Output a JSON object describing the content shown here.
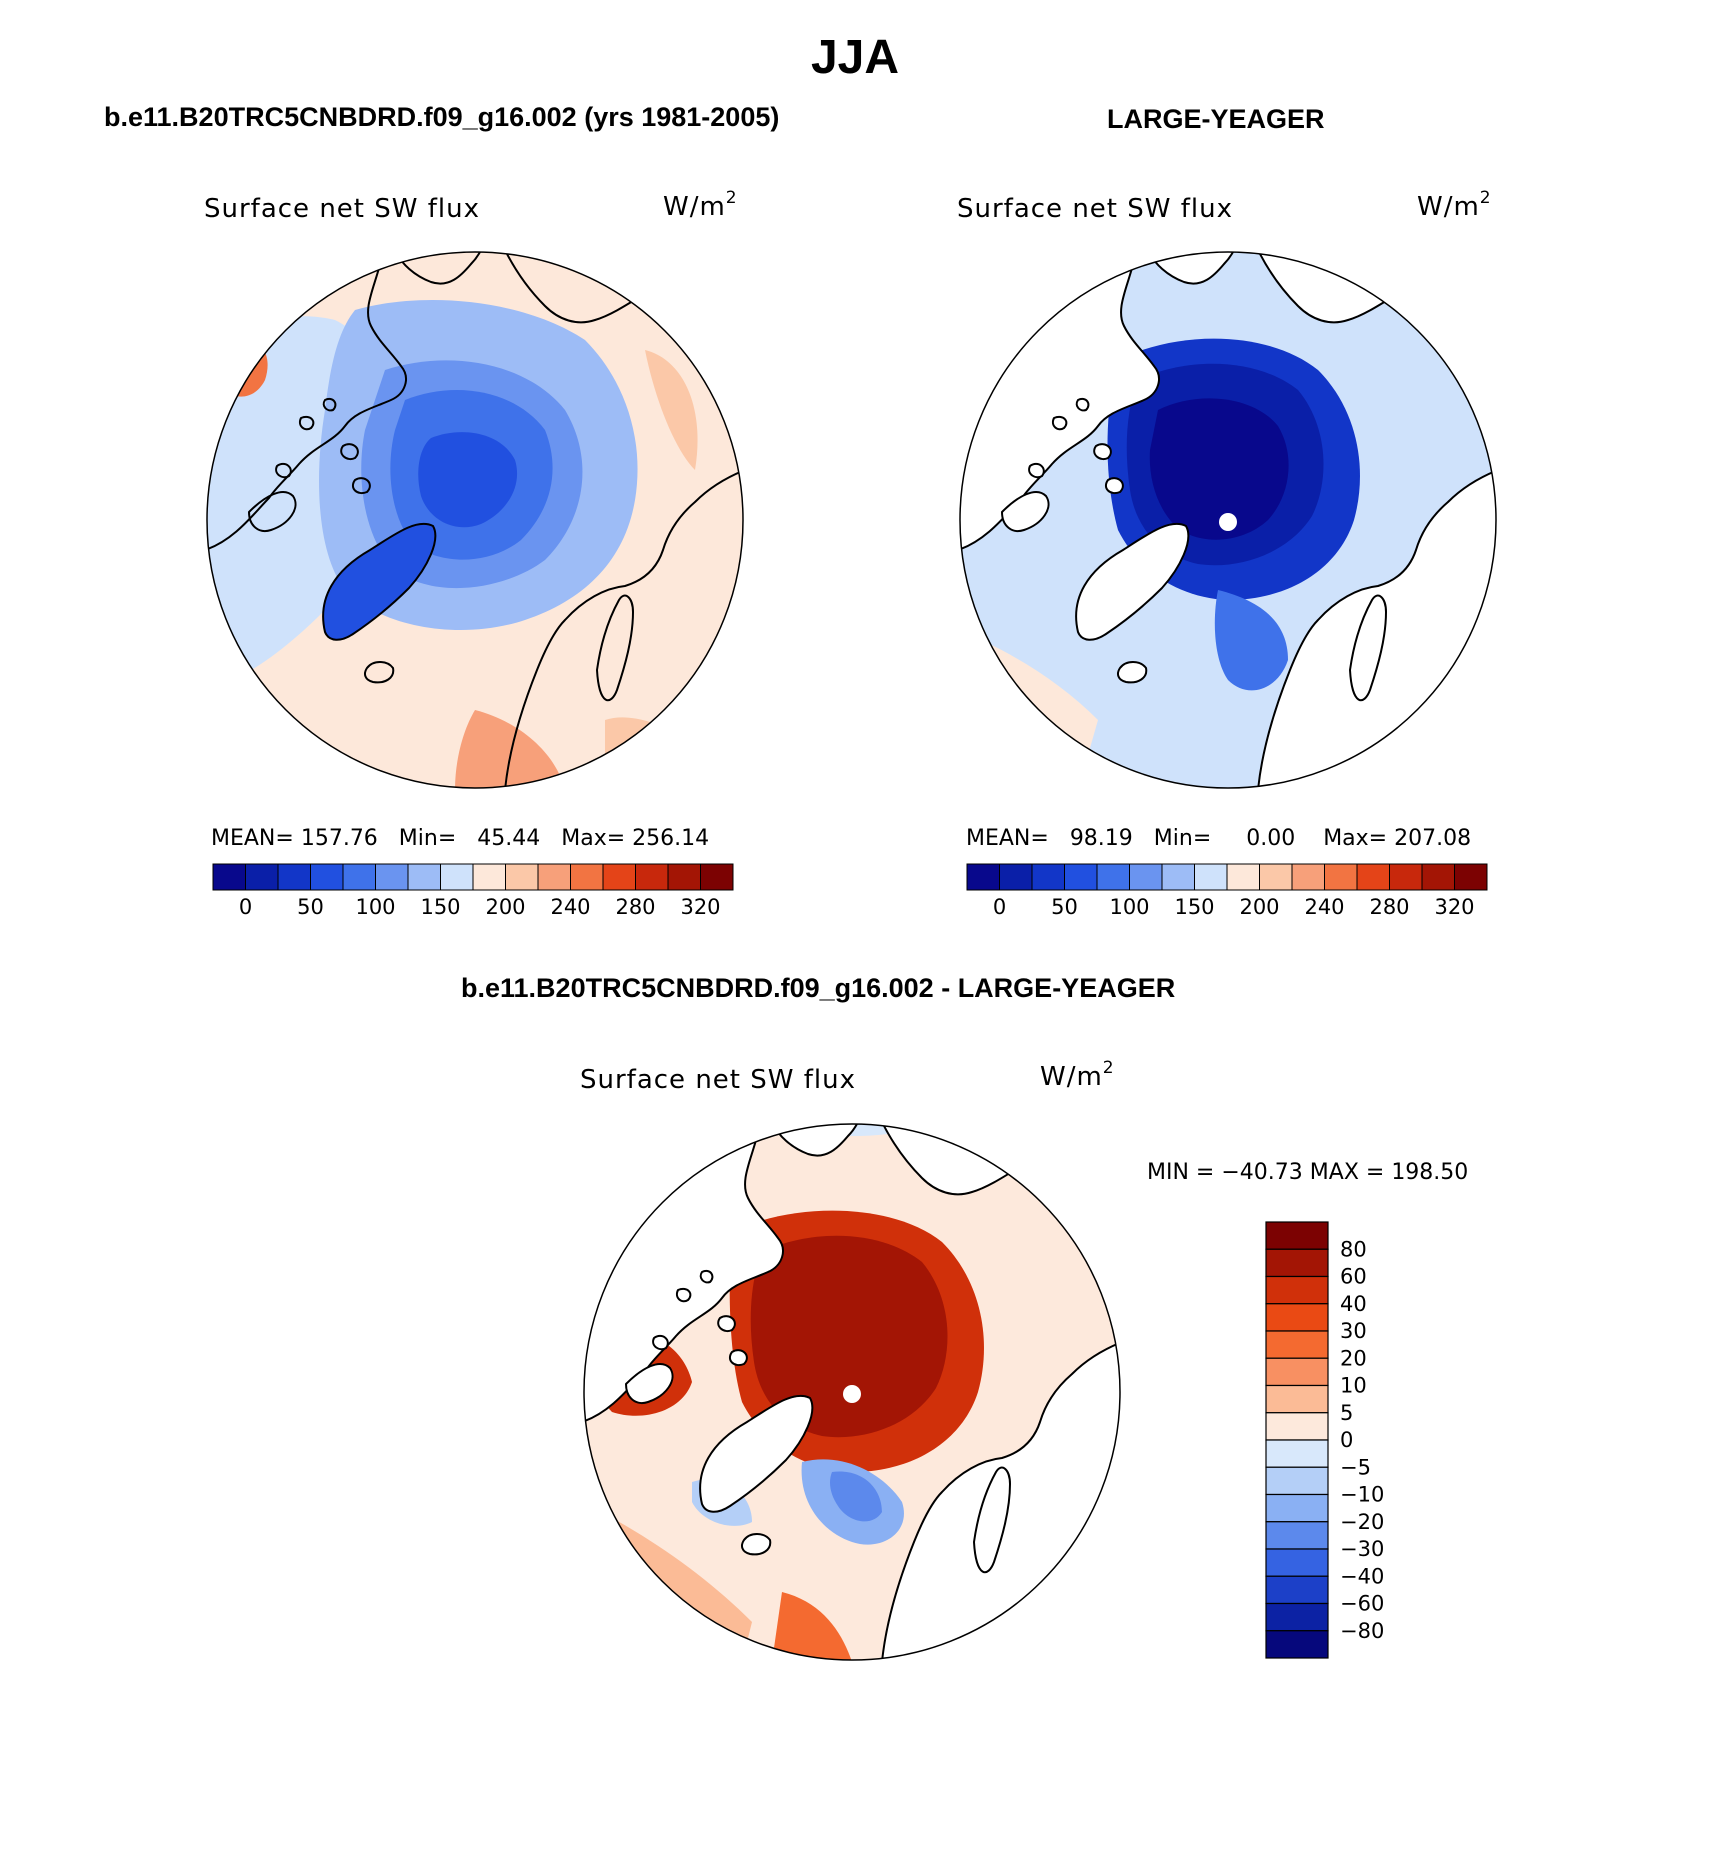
{
  "figure": {
    "title": "JJA",
    "top_left_title": "b.e11.B20TRC5CNBDRD.f09_g16.002 (yrs 1981-2005)",
    "top_right_title": "LARGE-YEAGER",
    "bottom_title": "b.e11.B20TRC5CNBDRD.f09_g16.002 - LARGE-YEAGER"
  },
  "chart_data": [
    {
      "type": "heatmap",
      "projection": "north polar stereographic",
      "title": "Surface net SW flux",
      "units_base": "W/m",
      "units_exp": "2",
      "stats": {
        "mean_label": "MEAN=",
        "mean": "157.76",
        "min_label": "Min=",
        "min": "45.44",
        "max_label": "Max=",
        "max": "256.14"
      },
      "colorbar": {
        "orientation": "horizontal",
        "levels": [
          0,
          25,
          50,
          75,
          100,
          125,
          150,
          175,
          200,
          220,
          240,
          260,
          280,
          300,
          320
        ],
        "tick_labels": [
          "0",
          "50",
          "100",
          "150",
          "200",
          "240",
          "280",
          "320"
        ],
        "colors": [
          "#08088c",
          "#0a1fa8",
          "#1236c8",
          "#2150e0",
          "#3f72ea",
          "#6a94f0",
          "#9dbcf6",
          "#cfe2fb",
          "#fde8da",
          "#fbc8a8",
          "#f7a07a",
          "#f27442",
          "#e44418",
          "#c8280c",
          "#a31505",
          "#7c0202"
        ]
      },
      "field_summary": "Arctic Ocean and Greenland low (~75-125), mid-latitude land and oceans 175-240, Greenland ice sheet ~75"
    },
    {
      "type": "heatmap",
      "projection": "north polar stereographic",
      "title": "Surface net SW flux",
      "units_base": "W/m",
      "units_exp": "2",
      "stats": {
        "mean_label": "MEAN=",
        "mean": "98.19",
        "min_label": "Min=",
        "min": "0.00",
        "max_label": "Max=",
        "max": "207.08"
      },
      "colorbar": {
        "orientation": "horizontal",
        "levels": [
          0,
          25,
          50,
          75,
          100,
          125,
          150,
          175,
          200,
          220,
          240,
          260,
          280,
          300,
          320
        ],
        "tick_labels": [
          "0",
          "50",
          "100",
          "150",
          "200",
          "240",
          "280",
          "320"
        ],
        "colors": [
          "#08088c",
          "#0a1fa8",
          "#1236c8",
          "#2150e0",
          "#3f72ea",
          "#6a94f0",
          "#9dbcf6",
          "#cfe2fb",
          "#fde8da",
          "#fbc8a8",
          "#f7a07a",
          "#f27442",
          "#e44418",
          "#c8280c",
          "#a31505",
          "#7c0202"
        ]
      },
      "field_summary": "Ocean-only field: Arctic Ocean near 0-25, marginal seas 50-150, open ocean 175-200, land masked"
    },
    {
      "type": "heatmap",
      "projection": "north polar stereographic",
      "title": "Surface net SW flux",
      "units_base": "W/m",
      "units_exp": "2",
      "stats": {
        "min_label": "MIN =",
        "min": "−40.73",
        "max_label": "MAX =",
        "max": "198.50"
      },
      "colorbar": {
        "orientation": "vertical",
        "tick_labels": [
          "80",
          "60",
          "40",
          "30",
          "20",
          "10",
          "5",
          "0",
          "−5",
          "−10",
          "−20",
          "−30",
          "−40",
          "−60",
          "−80"
        ],
        "colors": [
          "#7c0202",
          "#a31505",
          "#d0300a",
          "#ea4a14",
          "#f46a30",
          "#f89062",
          "#fbbb96",
          "#fde9dc",
          "#d8e8fb",
          "#b4cff7",
          "#8ab0f3",
          "#5c89ec",
          "#3563e2",
          "#1c40c8",
          "#0c22a4",
          "#06087c"
        ]
      },
      "field_summary": "Difference (model minus LARGE-YEAGER): Arctic Ocean +60 to +80, Nordic seas and Barents -5 to -40, North Atlantic and Pacific +5 to +20"
    }
  ],
  "colors": {
    "background": "#ffffff",
    "land_mask": "#ffffff",
    "coast": "#000000"
  }
}
